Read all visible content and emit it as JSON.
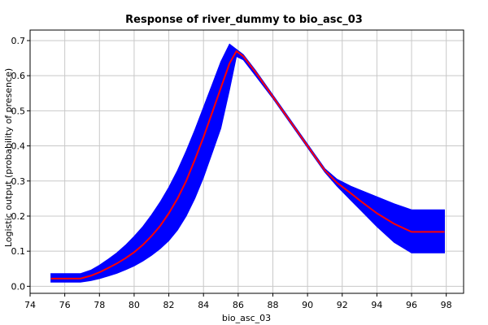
{
  "chart_data": {
    "type": "area",
    "title": "Response of river_dummy to bio_asc_03",
    "xlabel": "bio_asc_03",
    "ylabel": "Logistic output (probability of presence)",
    "xlim": [
      74,
      99
    ],
    "ylim": [
      -0.02,
      0.73
    ],
    "xticks": [
      74,
      76,
      78,
      80,
      82,
      84,
      86,
      88,
      90,
      92,
      94,
      96,
      98
    ],
    "yticks": [
      0.0,
      0.1,
      0.2,
      0.3,
      0.4,
      0.5,
      0.6,
      0.7
    ],
    "xtick_labels": [
      "74",
      "76",
      "78",
      "80",
      "82",
      "84",
      "86",
      "88",
      "90",
      "92",
      "94",
      "96",
      "98"
    ],
    "ytick_labels": [
      "0.0",
      "0.1",
      "0.2",
      "0.3",
      "0.4",
      "0.5",
      "0.6",
      "0.7"
    ],
    "grid": true,
    "colors": {
      "mean": "#ff0000",
      "band": "#0000ff",
      "grid": "#c8c8c8",
      "axis": "#000000"
    },
    "series": [
      {
        "role": "mean",
        "x": [
          75.2,
          76.9,
          77.5,
          78.0,
          78.5,
          79.0,
          79.5,
          80.0,
          80.5,
          81.0,
          81.5,
          82.0,
          82.5,
          83.0,
          83.5,
          84.0,
          84.5,
          85.0,
          85.5,
          85.9,
          86.3,
          87.0,
          88.0,
          89.0,
          90.0,
          91.0,
          91.7,
          92.5,
          93.0,
          94.0,
          95.0,
          96.0,
          97.9
        ],
        "y": [
          0.022,
          0.022,
          0.03,
          0.04,
          0.052,
          0.065,
          0.08,
          0.097,
          0.118,
          0.143,
          0.172,
          0.208,
          0.25,
          0.3,
          0.36,
          0.425,
          0.495,
          0.565,
          0.635,
          0.67,
          0.655,
          0.61,
          0.54,
          0.47,
          0.4,
          0.33,
          0.295,
          0.265,
          0.245,
          0.208,
          0.178,
          0.155,
          0.155
        ]
      },
      {
        "role": "band-upper",
        "x": [
          75.2,
          76.9,
          77.5,
          78.0,
          78.5,
          79.0,
          79.5,
          80.0,
          80.5,
          81.0,
          81.5,
          82.0,
          82.5,
          83.0,
          83.5,
          84.0,
          84.5,
          85.0,
          85.5,
          85.9,
          86.3,
          87.0,
          88.0,
          89.0,
          90.0,
          91.0,
          91.7,
          92.5,
          93.0,
          94.0,
          95.0,
          96.0,
          97.9
        ],
        "y": [
          0.036,
          0.036,
          0.046,
          0.06,
          0.077,
          0.095,
          0.117,
          0.142,
          0.17,
          0.203,
          0.24,
          0.282,
          0.33,
          0.385,
          0.445,
          0.51,
          0.575,
          0.64,
          0.69,
          0.675,
          0.66,
          0.615,
          0.545,
          0.475,
          0.405,
          0.335,
          0.305,
          0.285,
          0.275,
          0.255,
          0.235,
          0.218,
          0.218
        ]
      },
      {
        "role": "band-lower",
        "x": [
          75.2,
          76.9,
          77.5,
          78.0,
          78.5,
          79.0,
          79.5,
          80.0,
          80.5,
          81.0,
          81.5,
          82.0,
          82.5,
          83.0,
          83.5,
          84.0,
          84.5,
          85.0,
          85.5,
          85.9,
          86.3,
          87.0,
          88.0,
          89.0,
          90.0,
          91.0,
          91.7,
          92.5,
          93.0,
          94.0,
          95.0,
          96.0,
          97.9
        ],
        "y": [
          0.012,
          0.012,
          0.016,
          0.022,
          0.029,
          0.037,
          0.047,
          0.058,
          0.072,
          0.088,
          0.107,
          0.13,
          0.16,
          0.2,
          0.25,
          0.31,
          0.38,
          0.45,
          0.56,
          0.655,
          0.645,
          0.6,
          0.535,
          0.465,
          0.395,
          0.325,
          0.285,
          0.245,
          0.22,
          0.17,
          0.125,
          0.095,
          0.095
        ]
      }
    ]
  }
}
